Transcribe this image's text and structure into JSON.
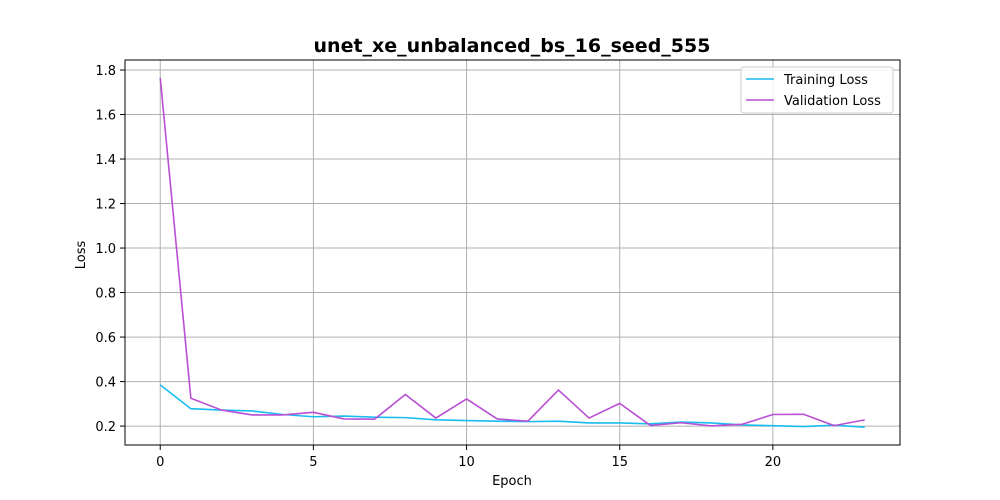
{
  "chart_data": {
    "type": "line",
    "title": "unet_xe_unbalanced_bs_16_seed_555",
    "xlabel": "Epoch",
    "ylabel": "Loss",
    "xlim": [
      -1.15,
      24.15
    ],
    "ylim": [
      0.115,
      1.845
    ],
    "xticks": [
      0,
      5,
      10,
      15,
      20
    ],
    "xtick_labels": [
      "0",
      "5",
      "10",
      "15",
      "20"
    ],
    "yticks": [
      0.2,
      0.4,
      0.6,
      0.8,
      1.0,
      1.2,
      1.4,
      1.6,
      1.8
    ],
    "ytick_labels": [
      "0.2",
      "0.4",
      "0.6",
      "0.8",
      "1.0",
      "1.2",
      "1.4",
      "1.6",
      "1.8"
    ],
    "grid": true,
    "legend_position": "upper right",
    "x": [
      0,
      1,
      2,
      3,
      4,
      5,
      6,
      7,
      8,
      9,
      10,
      11,
      12,
      13,
      14,
      15,
      16,
      17,
      18,
      19,
      20,
      21,
      22,
      23
    ],
    "series": [
      {
        "name": "Training Loss",
        "color": "#1abcf0",
        "values": [
          0.385,
          0.278,
          0.272,
          0.268,
          0.252,
          0.242,
          0.245,
          0.24,
          0.238,
          0.228,
          0.225,
          0.222,
          0.22,
          0.222,
          0.214,
          0.214,
          0.21,
          0.218,
          0.214,
          0.205,
          0.202,
          0.198,
          0.204,
          0.195
        ]
      },
      {
        "name": "Validation Loss",
        "color": "#b94fd4",
        "values": [
          1.765,
          0.325,
          0.272,
          0.25,
          0.25,
          0.262,
          0.232,
          0.231,
          0.342,
          0.236,
          0.322,
          0.232,
          0.222,
          0.362,
          0.236,
          0.302,
          0.203,
          0.215,
          0.201,
          0.208,
          0.252,
          0.253,
          0.202,
          0.228
        ]
      }
    ]
  }
}
